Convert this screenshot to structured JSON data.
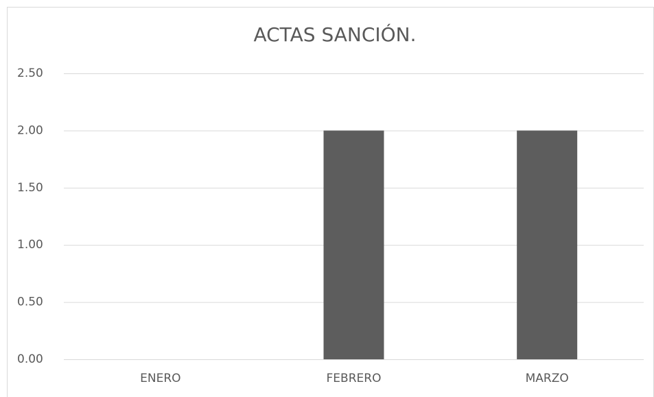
{
  "chart_data": {
    "type": "bar",
    "title": "ACTAS SANCIÓN.",
    "categories": [
      "ENERO",
      "FEBRERO",
      "MARZO"
    ],
    "values": [
      0,
      2,
      2
    ],
    "color": "#5d5d5d",
    "ylim": [
      0,
      2.5
    ],
    "yticks": [
      {
        "value": 0,
        "label": "0.00"
      },
      {
        "value": 0.5,
        "label": "0.50"
      },
      {
        "value": 1,
        "label": "1.00"
      },
      {
        "value": 1.5,
        "label": "1.50"
      },
      {
        "value": 2,
        "label": "2.00"
      },
      {
        "value": 2.5,
        "label": "2.50"
      }
    ],
    "grid": true
  }
}
